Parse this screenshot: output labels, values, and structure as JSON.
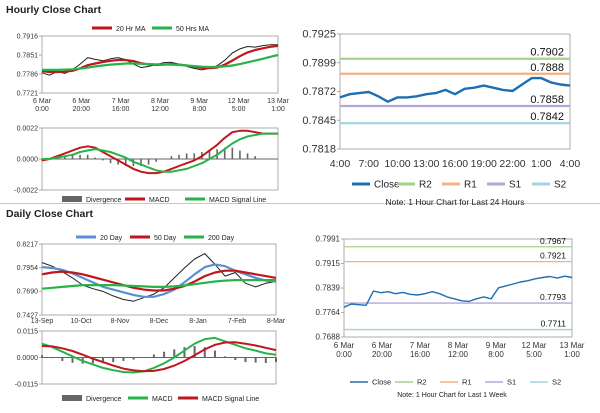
{
  "sections": {
    "hourly_title": "Hourly Close Chart",
    "daily_title": "Daily Close Chart"
  },
  "colors": {
    "price": "#1f1f1f",
    "ma_red": "#c0161d",
    "ma_green": "#27b34a",
    "ma_blue": "#5b8fd1",
    "close_blue": "#1f6fb0",
    "r2": "#a8d08d",
    "r1": "#f4b183",
    "s1": "#b4a7d6",
    "s2": "#9dd4e6",
    "divergence": "#666666"
  },
  "chart_data": [
    {
      "id": "hourly_price",
      "type": "line",
      "title": "Hourly Close Chart",
      "ylim": [
        0.7721,
        0.7916
      ],
      "yticks": [
        "0.7916",
        "0.7851",
        "0.7786",
        "0.7721"
      ],
      "xticks": [
        "6 Mar\n0:00",
        "6 Mar\n20:00",
        "7 Mar\n16:00",
        "8 Mar\n12:00",
        "9 Mar\n8:00",
        "12 Mar\n5:00",
        "13 Mar\n1:00"
      ],
      "legend": [
        "20 Hr MA",
        "50 Hrs MA"
      ],
      "series": [
        {
          "name": "Close",
          "values": [
            0.779,
            0.7782,
            0.7795,
            0.7788,
            0.78,
            0.782,
            0.7842,
            0.7836,
            0.7831,
            0.7838,
            0.7842,
            0.7835,
            0.782,
            0.7808,
            0.7812,
            0.7818,
            0.7825,
            0.7826,
            0.782,
            0.7812,
            0.7805,
            0.78,
            0.7806,
            0.7814,
            0.7833,
            0.7858,
            0.7872,
            0.788,
            0.7878,
            0.7883,
            0.7886,
            0.7886
          ]
        },
        {
          "name": "20 Hr MA",
          "values": [
            0.7796,
            0.7793,
            0.7793,
            0.7794,
            0.7797,
            0.7805,
            0.7816,
            0.7822,
            0.7827,
            0.7831,
            0.7834,
            0.7834,
            0.783,
            0.7823,
            0.7819,
            0.7817,
            0.7818,
            0.782,
            0.7818,
            0.7815,
            0.7811,
            0.7807,
            0.7806,
            0.7808,
            0.7818,
            0.7832,
            0.7847,
            0.786,
            0.7868,
            0.7874,
            0.7879,
            0.7882
          ]
        },
        {
          "name": "50 Hrs MA",
          "values": [
            0.78,
            0.78,
            0.78,
            0.7801,
            0.7802,
            0.7804,
            0.7808,
            0.7812,
            0.7815,
            0.7818,
            0.782,
            0.7822,
            0.7822,
            0.7821,
            0.782,
            0.7819,
            0.7819,
            0.7818,
            0.7817,
            0.7815,
            0.7813,
            0.7811,
            0.781,
            0.781,
            0.7812,
            0.7815,
            0.782,
            0.7826,
            0.7832,
            0.7838,
            0.7845,
            0.7851
          ]
        }
      ]
    },
    {
      "id": "hourly_macd",
      "type": "line",
      "ylim": [
        -0.0022,
        0.0022
      ],
      "yticks": [
        "0.0022",
        "0.0000",
        "-0.0022"
      ],
      "legend": [
        "Divergence",
        "MACD",
        "MACD Signal Line"
      ],
      "series": [
        {
          "name": "MACD",
          "values": [
            -0.0001,
            0.0,
            0.0002,
            0.0004,
            0.0006,
            0.0008,
            0.0009,
            0.0008,
            0.0005,
            0.0002,
            -0.0001,
            -0.0004,
            -0.0007,
            -0.0009,
            -0.001,
            -0.001,
            -0.0009,
            -0.0007,
            -0.0005,
            -0.0003,
            -0.0001,
            0.0002,
            0.0006,
            0.001,
            0.0015,
            0.0019,
            0.002,
            0.002,
            0.0019,
            0.0018,
            0.0018,
            0.0018
          ]
        },
        {
          "name": "MACD Signal Line",
          "values": [
            0.0,
            0.0,
            0.0001,
            0.0002,
            0.0003,
            0.0005,
            0.0006,
            0.0007,
            0.0006,
            0.0005,
            0.0003,
            0.0001,
            -0.0002,
            -0.0004,
            -0.0006,
            -0.0008,
            -0.0009,
            -0.0009,
            -0.0008,
            -0.0007,
            -0.0005,
            -0.0003,
            0.0,
            0.0003,
            0.0007,
            0.0011,
            0.0014,
            0.0016,
            0.0017,
            0.0018,
            0.0018,
            0.0018
          ]
        }
      ]
    },
    {
      "id": "hourly_24h",
      "type": "line",
      "ylim": [
        0.7818,
        0.7925
      ],
      "yticks": [
        "0.7925",
        "0.7899",
        "0.7872",
        "0.7845",
        "0.7818"
      ],
      "xticks": [
        "4:00",
        "7:00",
        "10:00",
        "13:00",
        "16:00",
        "19:00",
        "22:00",
        "1:00",
        "4:00"
      ],
      "levels": [
        {
          "name": "R2",
          "value": 0.7902,
          "label": "0.7902"
        },
        {
          "name": "R1",
          "value": 0.7888,
          "label": "0.7888"
        },
        {
          "name": "S1",
          "value": 0.7858,
          "label": "0.7858"
        },
        {
          "name": "S2",
          "value": 0.7842,
          "label": "0.7842"
        }
      ],
      "legend": [
        "Close",
        "R2",
        "R1",
        "S1",
        "S2"
      ],
      "note": "Note: 1 Hour Chart for Last 24 Hours",
      "series": [
        {
          "name": "Close",
          "values": [
            0.7866,
            0.7869,
            0.787,
            0.7871,
            0.7867,
            0.7862,
            0.7866,
            0.7866,
            0.7867,
            0.7869,
            0.787,
            0.7873,
            0.7869,
            0.7874,
            0.7875,
            0.7877,
            0.7875,
            0.7873,
            0.7872,
            0.7878,
            0.7884,
            0.7884,
            0.788,
            0.7878,
            0.7877
          ]
        }
      ]
    },
    {
      "id": "daily_price",
      "type": "line",
      "title": "Daily Close Chart",
      "ylim": [
        0.7427,
        0.8217
      ],
      "yticks": [
        "0.8217",
        "0.7954",
        "0.7690",
        "0.7427"
      ],
      "xticks": [
        "13-Sep",
        "10-Oct",
        "8-Nov",
        "8-Dec",
        "8-Jan",
        "7-Feb",
        "8-Mar"
      ],
      "legend": [
        "20 Day",
        "50 Day",
        "200 Day"
      ],
      "series": [
        {
          "name": "Close",
          "values": [
            0.801,
            0.797,
            0.791,
            0.784,
            0.776,
            0.772,
            0.769,
            0.764,
            0.76,
            0.758,
            0.762,
            0.766,
            0.773,
            0.784,
            0.795,
            0.805,
            0.811,
            0.799,
            0.786,
            0.79,
            0.778,
            0.774,
            0.778,
            0.78
          ]
        },
        {
          "name": "20 Day",
          "values": [
            0.796,
            0.795,
            0.793,
            0.789,
            0.784,
            0.779,
            0.774,
            0.771,
            0.768,
            0.765,
            0.763,
            0.763,
            0.766,
            0.771,
            0.779,
            0.788,
            0.796,
            0.799,
            0.797,
            0.792,
            0.788,
            0.784,
            0.781,
            0.78
          ]
        },
        {
          "name": "50 Day",
          "values": [
            0.788,
            0.79,
            0.791,
            0.79,
            0.788,
            0.785,
            0.782,
            0.779,
            0.776,
            0.773,
            0.771,
            0.77,
            0.77,
            0.772,
            0.775,
            0.78,
            0.786,
            0.79,
            0.792,
            0.792,
            0.79,
            0.788,
            0.786,
            0.784
          ]
        },
        {
          "name": "200 Day",
          "values": [
            0.772,
            0.773,
            0.774,
            0.775,
            0.776,
            0.776,
            0.776,
            0.776,
            0.7755,
            0.775,
            0.7745,
            0.774,
            0.774,
            0.7745,
            0.7755,
            0.777,
            0.7785,
            0.78,
            0.781,
            0.7815,
            0.7815,
            0.7815,
            0.7815,
            0.7815
          ]
        }
      ]
    },
    {
      "id": "daily_macd",
      "type": "line",
      "ylim": [
        -0.0115,
        0.0115
      ],
      "yticks": [
        "0.0115",
        "0.0000",
        "-0.0115"
      ],
      "legend": [
        "Divergence",
        "MACD",
        "MACD Signal Line"
      ],
      "series": [
        {
          "name": "MACD",
          "values": [
            0.006,
            0.0045,
            0.0025,
            0.0005,
            -0.0015,
            -0.003,
            -0.0045,
            -0.0055,
            -0.0063,
            -0.0065,
            -0.006,
            -0.0045,
            -0.0025,
            0.0,
            0.003,
            0.006,
            0.008,
            0.0085,
            0.007,
            0.0055,
            0.004,
            0.003,
            0.0018,
            0.0012
          ]
        },
        {
          "name": "MACD Signal Line",
          "values": [
            0.005,
            0.0048,
            0.004,
            0.0028,
            0.0012,
            -0.0005,
            -0.002,
            -0.0035,
            -0.0048,
            -0.0056,
            -0.006,
            -0.0058,
            -0.005,
            -0.0035,
            -0.0015,
            0.001,
            0.0035,
            0.0055,
            0.0065,
            0.0066,
            0.006,
            0.0052,
            0.0042,
            0.0032
          ]
        }
      ]
    },
    {
      "id": "daily_week",
      "type": "line",
      "ylim": [
        0.7688,
        0.7991
      ],
      "yticks": [
        "0.7991",
        "0.7915",
        "0.7839",
        "0.7764",
        "0.7688"
      ],
      "xticks": [
        "6 Mar\n0:00",
        "6 Mar\n20:00",
        "7 Mar\n16:00",
        "8 Mar\n12:00",
        "9 Mar\n8:00",
        "12 Mar\n5:00",
        "13 Mar\n1:00"
      ],
      "levels": [
        {
          "name": "R2",
          "value": 0.7967,
          "label": "0.7967"
        },
        {
          "name": "R1",
          "value": 0.7921,
          "label": "0.7921"
        },
        {
          "name": "S1",
          "value": 0.7793,
          "label": "0.7793"
        },
        {
          "name": "S2",
          "value": 0.7711,
          "label": "0.7711"
        }
      ],
      "legend": [
        "Close",
        "R2",
        "R1",
        "S1",
        "S2"
      ],
      "note": "Note: 1 Hour Chart for Last 1 Week",
      "series": [
        {
          "name": "Close",
          "values": [
            0.778,
            0.779,
            0.7788,
            0.7786,
            0.783,
            0.7825,
            0.7828,
            0.7822,
            0.7826,
            0.782,
            0.7818,
            0.7822,
            0.7828,
            0.7822,
            0.7812,
            0.7806,
            0.78,
            0.7798,
            0.7806,
            0.7812,
            0.7806,
            0.784,
            0.7846,
            0.7852,
            0.7858,
            0.7862,
            0.7868,
            0.7872,
            0.7875,
            0.787,
            0.7876,
            0.7872
          ]
        }
      ]
    }
  ]
}
